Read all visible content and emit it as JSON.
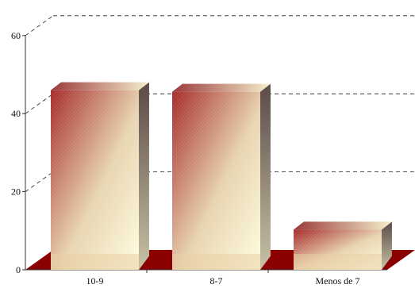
{
  "chart_data": {
    "type": "bar",
    "categories": [
      "10-9",
      "8-7",
      "Menos de 7"
    ],
    "values": [
      46,
      45.6,
      10.3
    ],
    "title": "",
    "xlabel": "",
    "ylabel": "",
    "ylim": [
      0,
      60
    ],
    "yticks": [
      0,
      20,
      40,
      60
    ],
    "grid": true,
    "three_d": true,
    "colors": {
      "bar_dark": "#a52a2a",
      "bar_light": "#fffde0",
      "bar_top_dark": "#9b3a3a",
      "bar_top_light": "#f5efcc",
      "bar_side_dark": "#5b4a46",
      "bar_side_light": "#c7c2a7",
      "floor": "#8b0000",
      "grid": "#222222",
      "axis": "#333333"
    }
  }
}
